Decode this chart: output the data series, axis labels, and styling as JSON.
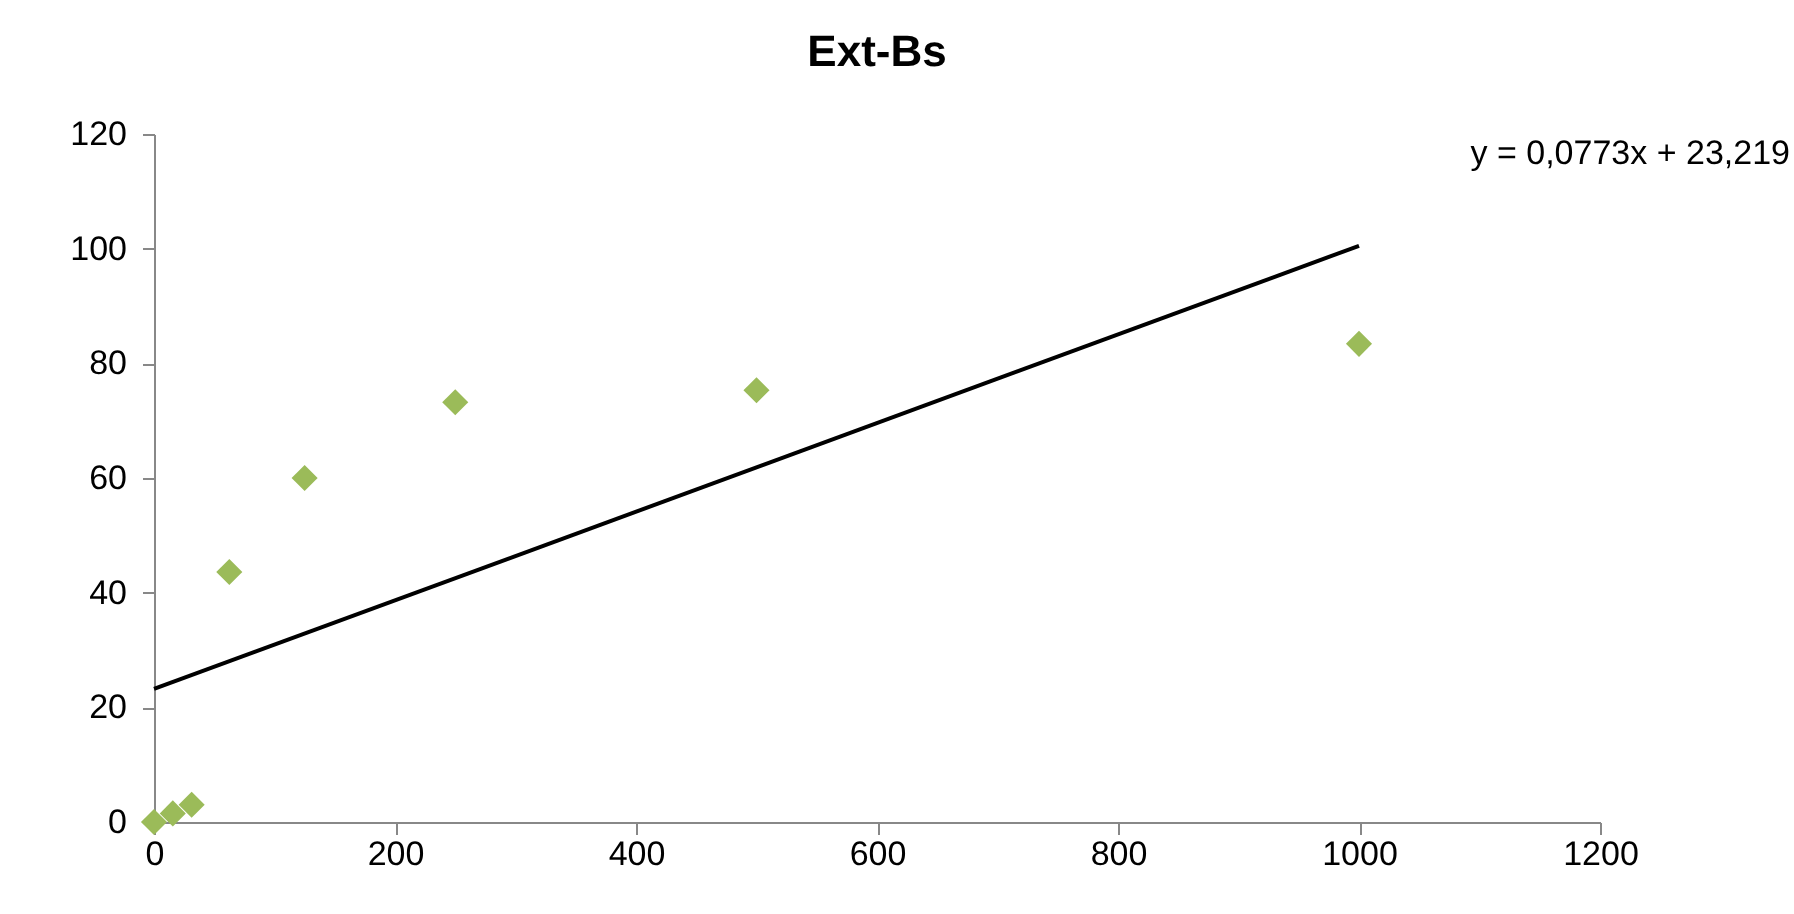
{
  "chart_data": {
    "type": "scatter",
    "title": "Ext-Bs",
    "x": [
      0,
      15.6,
      31.25,
      62.5,
      125,
      250,
      500,
      1000
    ],
    "series": [
      {
        "color": "#9bbb59",
        "marker": "diamond",
        "values": [
          0,
          1.5,
          3,
          43.6,
          60,
          73.2,
          75.3,
          83.4
        ]
      },
      {
        "type": "line",
        "color": "#000000",
        "marker": "none",
        "x": [
          0,
          1000
        ],
        "values": [
          23.2,
          100.5
        ]
      }
    ],
    "annotations": [
      "y = 0,0773x + 23,219"
    ],
    "xlim": [
      0,
      1200
    ],
    "xticks": [
      0,
      200,
      400,
      600,
      800,
      1000,
      1200
    ],
    "ylim": [
      0,
      120
    ],
    "yticks": [
      0,
      20,
      40,
      60,
      80,
      100,
      120
    ],
    "grid": false
  }
}
